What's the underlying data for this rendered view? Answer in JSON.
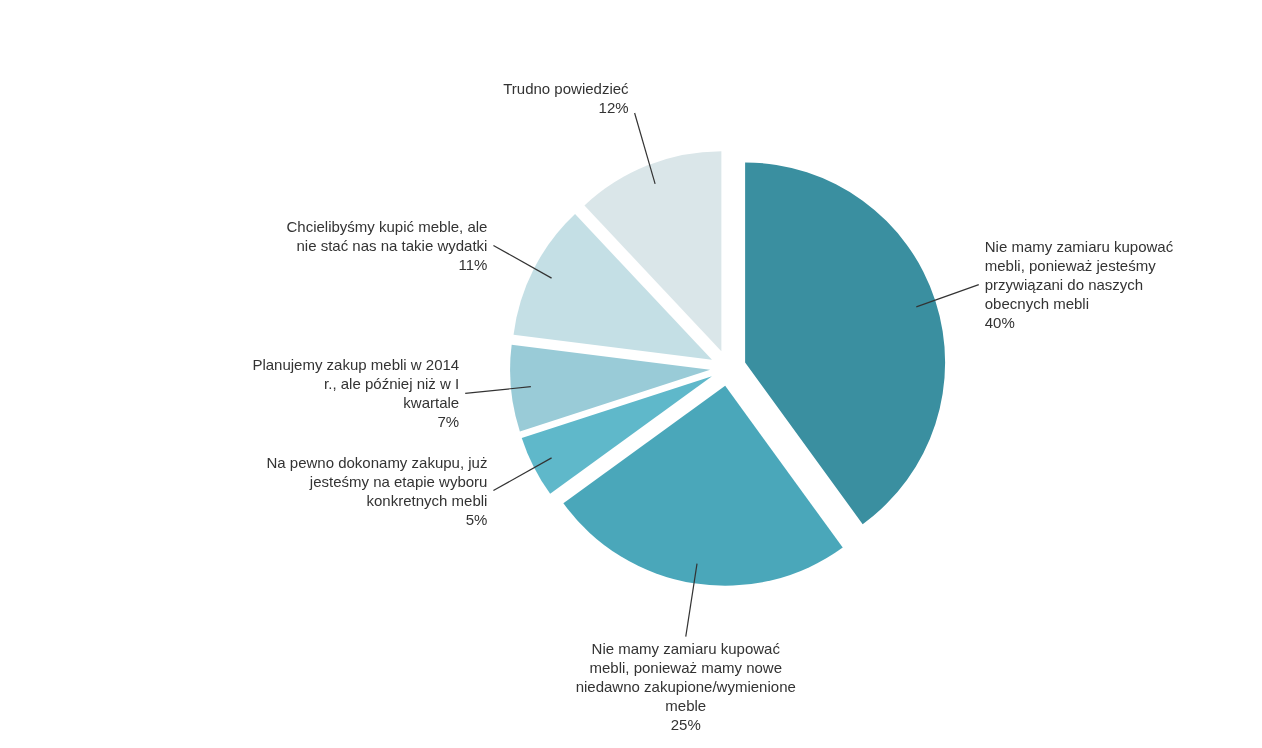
{
  "chart_data": {
    "type": "pie",
    "categories": [
      "Nie mamy zamiaru kupować mebli, ponieważ jesteśmy przywiązani do naszych obecnych mebli",
      "Nie mamy zamiaru kupować mebli, ponieważ mamy nowe niedawno zakupione/wymienione meble",
      "Na pewno dokonamy zakupu, już jesteśmy na etapie wyboru konkretnych mebli",
      "Planujemy zakup mebli w 2014 r., ale później niż w I kwartale",
      "Chcielibyśmy kupić meble, ale nie stać nas na takie wydatki",
      "Trudno powiedzieć"
    ],
    "values": [
      40,
      25,
      5,
      7,
      11,
      12
    ],
    "colors": [
      "#3a8fa0",
      "#4aa7ba",
      "#5fb8ca",
      "#99cbd7",
      "#c4dfe5",
      "#dae6e9"
    ],
    "value_labels": [
      "40%",
      "25%",
      "5%",
      "7%",
      "11%",
      "12%"
    ]
  }
}
